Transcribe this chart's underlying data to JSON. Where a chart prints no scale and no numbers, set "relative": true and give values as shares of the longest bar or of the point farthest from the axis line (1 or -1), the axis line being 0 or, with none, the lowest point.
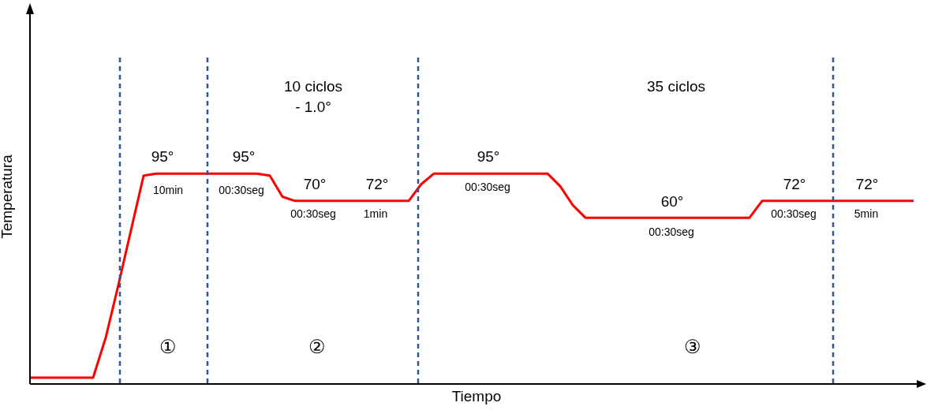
{
  "chart_data": {
    "type": "line",
    "relative": true,
    "xlabel": "Tiempo",
    "ylabel": "Temperatura",
    "categories": [
      null,
      null,
      null,
      null,
      null,
      null,
      null,
      null,
      null,
      null,
      null,
      null,
      null,
      null,
      null,
      null,
      null,
      null,
      null,
      null,
      null,
      null,
      null,
      null,
      null,
      null,
      null,
      null,
      null,
      null,
      null,
      null,
      null,
      null,
      null,
      null,
      null,
      null,
      null,
      null,
      null,
      null,
      null,
      null,
      null,
      null,
      null,
      null,
      null,
      null,
      null,
      null,
      null,
      null,
      null,
      null,
      null,
      null,
      null,
      null,
      null,
      null,
      null,
      null,
      null,
      null,
      null,
      null,
      null,
      null,
      null
    ],
    "series": [
      {
        "color": "#ff0000",
        "values": [
          0.03,
          0.03,
          0.03,
          0.03,
          0.03,
          0.03,
          0.22,
          0.47,
          0.73,
          0.99,
          1,
          1,
          1,
          1,
          1,
          1,
          1,
          1,
          1,
          0.99,
          0.89,
          0.87,
          0.87,
          0.87,
          0.87,
          0.87,
          0.87,
          0.87,
          0.87,
          0.87,
          0.87,
          0.95,
          1,
          1,
          1,
          1,
          1,
          1,
          1,
          1,
          1,
          1,
          0.94,
          0.85,
          0.79,
          0.79,
          0.79,
          0.79,
          0.79,
          0.79,
          0.79,
          0.79,
          0.79,
          0.79,
          0.79,
          0.79,
          0.79,
          0.79,
          0.87,
          0.87,
          0.87,
          0.87,
          0.87,
          0.87,
          0.87,
          0.87,
          0.87,
          0.87,
          0.87,
          0.87,
          0.87
        ]
      }
    ],
    "marker": "none",
    "line_style": "solid",
    "grid": false,
    "legend": false,
    "annotations": [
      "10 ciclos\n- 1.0°",
      "35 ciclos",
      "95°",
      "10min",
      "95°",
      "00:30seg",
      "70°",
      "00:30seg",
      "72°",
      "1min",
      "95°",
      "00:30seg",
      "60°",
      "00:30seg",
      "72°",
      "00:30seg",
      "72°",
      "5min",
      "①",
      "②",
      "③"
    ]
  }
}
